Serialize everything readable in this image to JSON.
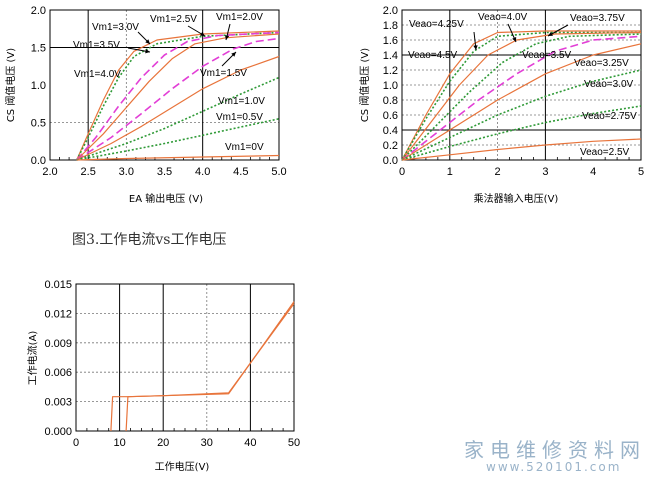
{
  "caption": "图3.工作电流vs工作电压",
  "watermark": {
    "line1": "家电维修资料网",
    "line2": "www.520101.com"
  },
  "colors": {
    "orange": "#e8743b",
    "magenta": "#e23fd6",
    "green": "#2f9a37",
    "gridDash": "#777777"
  },
  "chart_data": [
    {
      "type": "line",
      "xlabel": "EA 输出电压 (V)",
      "ylabel": "CS 阈值电压 (V)",
      "xlim": [
        2.0,
        5.0
      ],
      "ylim": [
        0.0,
        2.0
      ],
      "xticks": [
        "2.0",
        "2.5",
        "3.0",
        "3.5",
        "4.0",
        "4.5",
        "5.0"
      ],
      "yticks": [
        "0.0",
        "0.5",
        "1.0",
        "1.5",
        "2.0"
      ],
      "annotations": [
        "Vm1=3.0V",
        "Vm1=2.5V",
        "Vm1=2.0V",
        "Vm1=3.5V",
        "Vm1=1.5V",
        "Vm1=4.0V",
        "Vm1=1.0V",
        "Vm1=0.5V",
        "Vm1=0V"
      ],
      "series": [
        {
          "label": "Vm1=4.0V",
          "style": "orange",
          "x": [
            2.35,
            2.5,
            2.7,
            2.9,
            3.1,
            3.4,
            4.0,
            5.0
          ],
          "y": [
            0.0,
            0.35,
            0.8,
            1.2,
            1.45,
            1.6,
            1.68,
            1.72
          ]
        },
        {
          "label": "Vm1=3.5V",
          "style": "green",
          "x": [
            2.35,
            2.5,
            2.7,
            2.9,
            3.1,
            3.4,
            4.0,
            5.0
          ],
          "y": [
            0.0,
            0.3,
            0.72,
            1.1,
            1.38,
            1.55,
            1.65,
            1.7
          ]
        },
        {
          "label": "Vm1=3.0V",
          "style": "magenta",
          "x": [
            2.35,
            2.6,
            2.9,
            3.2,
            3.5,
            3.8,
            4.2,
            5.0
          ],
          "y": [
            0.0,
            0.3,
            0.72,
            1.1,
            1.4,
            1.58,
            1.66,
            1.7
          ]
        },
        {
          "label": "Vm1=2.5V",
          "style": "orange",
          "x": [
            2.35,
            2.7,
            3.0,
            3.3,
            3.6,
            3.9,
            4.3,
            5.0
          ],
          "y": [
            0.0,
            0.35,
            0.7,
            1.05,
            1.35,
            1.55,
            1.63,
            1.68
          ]
        },
        {
          "label": "Vm1=2.0V",
          "style": "magenta",
          "x": [
            2.35,
            2.8,
            3.2,
            3.6,
            4.0,
            4.4,
            4.7,
            5.0
          ],
          "y": [
            0.0,
            0.3,
            0.62,
            0.95,
            1.25,
            1.48,
            1.58,
            1.62
          ]
        },
        {
          "label": "Vm1=1.5V",
          "style": "orange",
          "x": [
            2.35,
            2.8,
            3.2,
            3.6,
            4.0,
            4.5,
            5.0
          ],
          "y": [
            0.0,
            0.22,
            0.45,
            0.7,
            0.95,
            1.2,
            1.38
          ]
        },
        {
          "label": "Vm1=1.0V",
          "style": "green",
          "x": [
            2.35,
            3.0,
            3.5,
            4.0,
            4.5,
            5.0
          ],
          "y": [
            0.0,
            0.22,
            0.42,
            0.65,
            0.88,
            1.1
          ]
        },
        {
          "label": "Vm1=0.5V",
          "style": "green",
          "x": [
            2.35,
            3.0,
            3.5,
            4.0,
            4.5,
            5.0
          ],
          "y": [
            0.0,
            0.12,
            0.22,
            0.33,
            0.44,
            0.55
          ]
        },
        {
          "label": "Vm1=0V",
          "style": "orange",
          "x": [
            2.35,
            3.0,
            4.0,
            5.0
          ],
          "y": [
            0.0,
            0.02,
            0.04,
            0.06
          ]
        }
      ]
    },
    {
      "type": "line",
      "xlabel": "乘法器输入电压(V)",
      "ylabel": "CS 阈值电压 (V)",
      "xlim": [
        0,
        5
      ],
      "ylim": [
        0.0,
        2.0
      ],
      "xticks": [
        "0",
        "1",
        "2",
        "3",
        "4",
        "5"
      ],
      "yticks": [
        "0.0",
        "0.2",
        "0.4",
        "0.6",
        "0.8",
        "1.0",
        "1.2",
        "1.4",
        "1.6",
        "1.8",
        "2.0"
      ],
      "annotations": [
        "Veao=4.25V",
        "Veao=4.0V",
        "Veao=3.75V",
        "Veao=4.5V",
        "Veao=3.5V",
        "Veao=3.25V",
        "Veao=3.0V",
        "Veao=2.75V",
        "Veao=2.5V"
      ],
      "series": [
        {
          "label": "Veao=4.5V",
          "style": "orange",
          "x": [
            0,
            0.5,
            1.0,
            1.5,
            2.0,
            3.0,
            5.0
          ],
          "y": [
            0.0,
            0.6,
            1.15,
            1.55,
            1.7,
            1.72,
            1.72
          ]
        },
        {
          "label": "Veao=4.25V",
          "style": "green",
          "x": [
            0,
            0.5,
            1.0,
            1.5,
            2.0,
            3.0,
            5.0
          ],
          "y": [
            0.0,
            0.55,
            1.05,
            1.45,
            1.65,
            1.7,
            1.7
          ]
        },
        {
          "label": "Veao=4.0V",
          "style": "orange",
          "x": [
            0,
            0.6,
            1.2,
            1.8,
            2.4,
            3.2,
            5.0
          ],
          "y": [
            0.0,
            0.5,
            1.0,
            1.4,
            1.6,
            1.68,
            1.7
          ]
        },
        {
          "label": "Veao=3.75V",
          "style": "green",
          "x": [
            0,
            0.7,
            1.4,
            2.1,
            2.8,
            3.5,
            5.0
          ],
          "y": [
            0.0,
            0.45,
            0.9,
            1.3,
            1.55,
            1.65,
            1.68
          ]
        },
        {
          "label": "Veao=3.5V",
          "style": "magenta",
          "x": [
            0,
            0.8,
            1.6,
            2.4,
            3.2,
            4.0,
            5.0
          ],
          "y": [
            0.0,
            0.4,
            0.8,
            1.15,
            1.45,
            1.6,
            1.65
          ]
        },
        {
          "label": "Veao=3.25V",
          "style": "orange",
          "x": [
            0,
            1.0,
            2.0,
            3.0,
            4.0,
            5.0
          ],
          "y": [
            0.0,
            0.4,
            0.8,
            1.15,
            1.4,
            1.55
          ]
        },
        {
          "label": "Veao=3.0V",
          "style": "green",
          "x": [
            0,
            1.0,
            2.0,
            3.0,
            4.0,
            5.0
          ],
          "y": [
            0.0,
            0.3,
            0.6,
            0.85,
            1.05,
            1.2
          ]
        },
        {
          "label": "Veao=2.75V",
          "style": "green",
          "x": [
            0,
            1.0,
            2.0,
            3.0,
            4.0,
            5.0
          ],
          "y": [
            0.0,
            0.18,
            0.35,
            0.5,
            0.62,
            0.72
          ]
        },
        {
          "label": "Veao=2.5V",
          "style": "orange",
          "x": [
            0,
            1.0,
            2.0,
            3.0,
            4.0,
            5.0
          ],
          "y": [
            0.0,
            0.07,
            0.14,
            0.2,
            0.25,
            0.28
          ]
        }
      ]
    },
    {
      "type": "line",
      "xlabel": "工作电压(V)",
      "ylabel": "工作电流(A)",
      "xlim": [
        0,
        50
      ],
      "ylim": [
        0.0,
        0.015
      ],
      "xticks": [
        "0",
        "10",
        "20",
        "30",
        "40",
        "50"
      ],
      "yticks": [
        "0.000",
        "0.003",
        "0.006",
        "0.009",
        "0.012",
        "0.015"
      ],
      "series": [
        {
          "style": "orange",
          "x": [
            8.0,
            8.4,
            12.0,
            35.0,
            50.0
          ],
          "y": [
            0.0,
            0.0035,
            0.0035,
            0.0038,
            0.0132
          ]
        },
        {
          "style": "orange",
          "x": [
            11.5,
            11.9,
            20.0,
            35.0,
            50.0
          ],
          "y": [
            0.0,
            0.0035,
            0.0036,
            0.0039,
            0.013
          ]
        }
      ]
    }
  ]
}
